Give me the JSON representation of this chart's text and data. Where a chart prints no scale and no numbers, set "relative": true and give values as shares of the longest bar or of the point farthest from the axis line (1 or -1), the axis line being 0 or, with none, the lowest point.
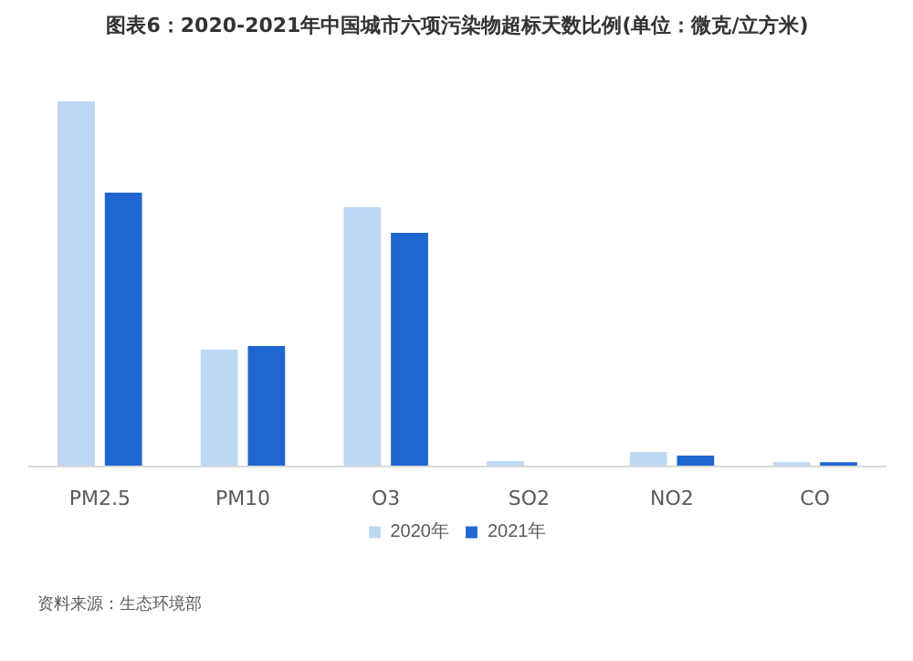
{
  "chart_data": {
    "type": "bar",
    "title": "图表6：2020-2021年中国城市六项污染物超标天数比例(单位：微克/立方米)",
    "categories": [
      "PM2.5",
      "PM10",
      "O3",
      "SO2",
      "NO2",
      "CO"
    ],
    "relative": true,
    "legend": "bottom",
    "annotations": [
      "资料来源：生态环境部"
    ],
    "series": [
      {
        "name": "2020年",
        "color": "#bdd7f5",
        "values": [
          1,
          0.32,
          0.71,
          0.015,
          0.04,
          0.012
        ]
      },
      {
        "name": "2021年",
        "color": "#1f66d1",
        "values": [
          0.75,
          0.33,
          0.64,
          0,
          0.03,
          0.012
        ]
      }
    ]
  }
}
